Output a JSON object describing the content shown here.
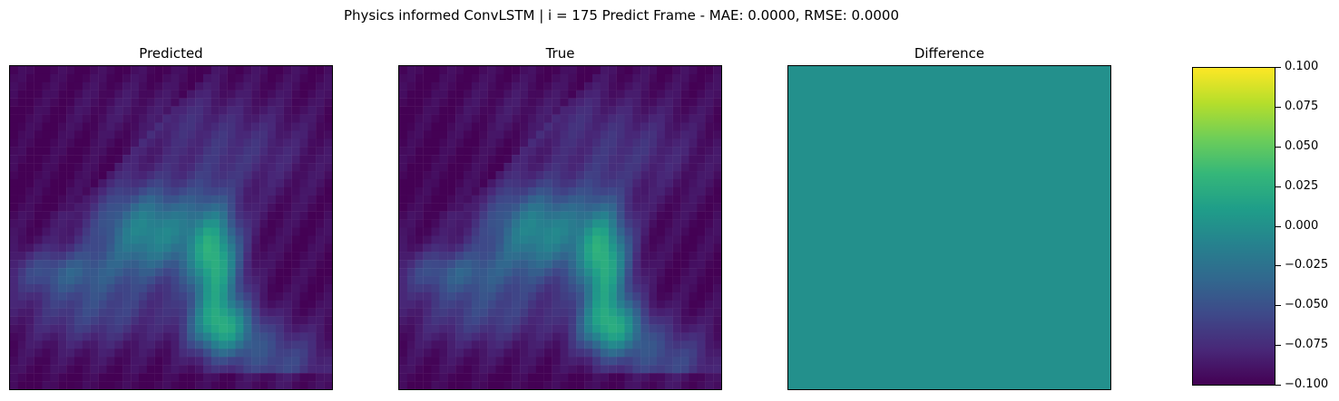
{
  "figure": {
    "suptitle": "Physics informed ConvLSTM | i = 175 Predict Frame - MAE: 0.0000, RMSE: 0.0000"
  },
  "panels": [
    {
      "title": "Predicted"
    },
    {
      "title": "True"
    },
    {
      "title": "Difference"
    }
  ],
  "colormap": {
    "name": "viridis",
    "stops": [
      "#440154",
      "#482878",
      "#3e4989",
      "#31688e",
      "#26828e",
      "#1f9e89",
      "#35b779",
      "#6ece58",
      "#b5de2b",
      "#fde725"
    ]
  },
  "chart_data": [
    {
      "type": "heatmap",
      "title": "Predicted",
      "grid": false,
      "axis_ticks": false,
      "rows": 40,
      "cols": 40,
      "value_range": [
        0,
        1
      ],
      "values": "approx. smooth field: low everywhere except a diagonal band of moderate values (~0.3-0.5) from lower-left toward center and a bright patch (~0.7-0.9) near center-right; upper region streaks (~0.2-0.3)"
    },
    {
      "type": "heatmap",
      "title": "True",
      "grid": false,
      "axis_ticks": false,
      "rows": 40,
      "cols": 40,
      "value_range": [
        0,
        1
      ],
      "values": "same as Predicted"
    },
    {
      "type": "heatmap",
      "title": "Difference",
      "grid": false,
      "axis_ticks": false,
      "rows": 40,
      "cols": 40,
      "uniform_value": 0.0,
      "colorbar": {
        "ticks": [
          "0.100",
          "0.075",
          "0.050",
          "0.025",
          "0.000",
          "−0.025",
          "−0.050",
          "−0.075",
          "−0.100"
        ],
        "range": [
          -0.1,
          0.1
        ]
      }
    }
  ]
}
